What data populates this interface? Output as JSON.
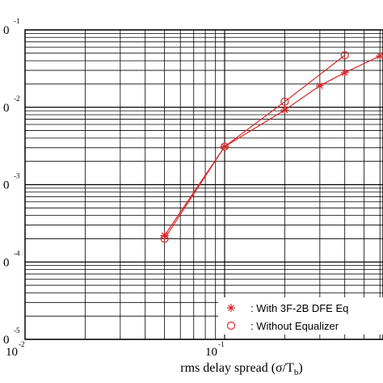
{
  "chart_data": {
    "type": "line",
    "xlabel": "rms delay spread (σ/T_b)",
    "xscale": "log",
    "yscale": "log",
    "xlim": [
      0.01,
      0.5
    ],
    "ylim": [
      1e-05,
      0.1
    ],
    "grid": true,
    "legend_position": "bottom-right",
    "x_ticks": [
      {
        "base": "10",
        "exp": "-2"
      },
      {
        "base": "10",
        "exp": "-1"
      }
    ],
    "y_ticks": [
      {
        "base": "0",
        "exp": "-1"
      },
      {
        "base": "0",
        "exp": "-2"
      },
      {
        "base": "0",
        "exp": "-3"
      },
      {
        "base": "0",
        "exp": "-4"
      },
      {
        "base": "0",
        "exp": "-5"
      }
    ],
    "series": [
      {
        "name": ": With 3F-2B DFE Eq",
        "marker": "asterisk",
        "color": "#d62728",
        "x": [
          0.05,
          0.1,
          0.2,
          0.3,
          0.4,
          0.6
        ],
        "y": [
          0.00022,
          0.0031,
          0.0092,
          0.019,
          0.028,
          0.046
        ]
      },
      {
        "name": ": Without Equalizer",
        "marker": "circle",
        "color": "#d62728",
        "x": [
          0.05,
          0.1,
          0.2,
          0.4
        ],
        "y": [
          0.0002,
          0.0031,
          0.0118,
          0.047
        ]
      }
    ]
  }
}
